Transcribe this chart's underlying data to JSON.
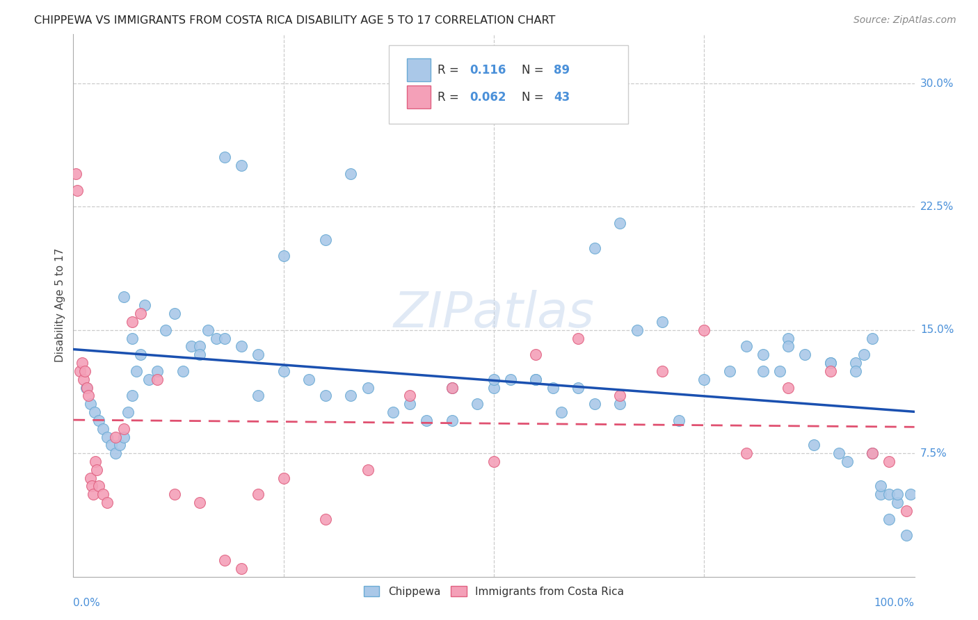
{
  "title": "CHIPPEWA VS IMMIGRANTS FROM COSTA RICA DISABILITY AGE 5 TO 17 CORRELATION CHART",
  "source": "Source: ZipAtlas.com",
  "accent_color": "#4a90d9",
  "ylabel": "Disability Age 5 to 17",
  "ytick_labels": [
    "7.5%",
    "15.0%",
    "22.5%",
    "30.0%"
  ],
  "ytick_values": [
    7.5,
    15.0,
    22.5,
    30.0
  ],
  "xlim": [
    0.0,
    100.0
  ],
  "ylim": [
    0.0,
    33.0
  ],
  "chippewa_color": "#aac8e8",
  "chippewa_edge": "#6aaad4",
  "immigrants_color": "#f4a0b8",
  "immigrants_edge": "#e06080",
  "line_chippewa_color": "#1a50b0",
  "line_immigrants_color": "#e05070",
  "background_color": "#ffffff",
  "watermark": "ZIPatlas",
  "bottom_legend_labels": [
    "Chippewa",
    "Immigrants from Costa Rica"
  ],
  "legend_R1": "0.116",
  "legend_N1": "89",
  "legend_R2": "0.062",
  "legend_N2": "43",
  "chippewa_x": [
    1.5,
    2.0,
    2.5,
    3.0,
    3.5,
    4.0,
    4.5,
    5.0,
    5.5,
    6.0,
    6.5,
    7.0,
    7.5,
    8.0,
    9.0,
    10.0,
    11.0,
    12.0,
    13.0,
    14.0,
    15.0,
    16.0,
    17.0,
    18.0,
    20.0,
    22.0,
    25.0,
    28.0,
    30.0,
    33.0,
    35.0,
    38.0,
    40.0,
    42.0,
    45.0,
    48.0,
    50.0,
    52.0,
    55.0,
    58.0,
    60.0,
    62.0,
    65.0,
    67.0,
    70.0,
    72.0,
    75.0,
    78.0,
    80.0,
    82.0,
    84.0,
    85.0,
    87.0,
    88.0,
    90.0,
    91.0,
    92.0,
    93.0,
    94.0,
    95.0,
    96.0,
    97.0,
    98.0,
    99.0,
    99.5,
    30.0,
    33.0,
    62.0,
    65.0,
    82.0,
    85.0,
    90.0,
    93.0,
    95.0,
    96.0,
    97.0,
    98.0,
    55.0,
    45.0,
    50.0,
    57.0,
    6.0,
    7.0,
    8.5,
    18.0,
    20.0,
    25.0,
    15.0,
    22.0
  ],
  "chippewa_y": [
    11.5,
    10.5,
    10.0,
    9.5,
    9.0,
    8.5,
    8.0,
    7.5,
    8.0,
    8.5,
    10.0,
    11.0,
    12.5,
    13.5,
    12.0,
    12.5,
    15.0,
    16.0,
    12.5,
    14.0,
    14.0,
    15.0,
    14.5,
    14.5,
    14.0,
    13.5,
    12.5,
    12.0,
    11.0,
    11.0,
    11.5,
    10.0,
    10.5,
    9.5,
    11.5,
    10.5,
    11.5,
    12.0,
    12.0,
    10.0,
    11.5,
    10.5,
    10.5,
    15.0,
    15.5,
    9.5,
    12.0,
    12.5,
    14.0,
    12.5,
    12.5,
    14.5,
    13.5,
    8.0,
    13.0,
    7.5,
    7.0,
    13.0,
    13.5,
    14.5,
    5.0,
    5.0,
    4.5,
    2.5,
    5.0,
    20.5,
    24.5,
    20.0,
    21.5,
    13.5,
    14.0,
    13.0,
    12.5,
    7.5,
    5.5,
    3.5,
    5.0,
    12.0,
    9.5,
    12.0,
    11.5,
    17.0,
    14.5,
    16.5,
    25.5,
    25.0,
    19.5,
    13.5,
    11.0
  ],
  "immigrants_x": [
    0.3,
    0.5,
    0.8,
    1.0,
    1.2,
    1.4,
    1.6,
    1.8,
    2.0,
    2.2,
    2.4,
    2.6,
    2.8,
    3.0,
    3.5,
    4.0,
    5.0,
    6.0,
    7.0,
    8.0,
    10.0,
    12.0,
    15.0,
    18.0,
    20.0,
    22.0,
    25.0,
    30.0,
    35.0,
    40.0,
    45.0,
    50.0,
    55.0,
    60.0,
    65.0,
    70.0,
    75.0,
    80.0,
    85.0,
    90.0,
    95.0,
    97.0,
    99.0
  ],
  "immigrants_y": [
    24.5,
    23.5,
    12.5,
    13.0,
    12.0,
    12.5,
    11.5,
    11.0,
    6.0,
    5.5,
    5.0,
    7.0,
    6.5,
    5.5,
    5.0,
    4.5,
    8.5,
    9.0,
    15.5,
    16.0,
    12.0,
    5.0,
    4.5,
    1.0,
    0.5,
    5.0,
    6.0,
    3.5,
    6.5,
    11.0,
    11.5,
    7.0,
    13.5,
    14.5,
    11.0,
    12.5,
    15.0,
    7.5,
    11.5,
    12.5,
    7.5,
    7.0,
    4.0
  ]
}
